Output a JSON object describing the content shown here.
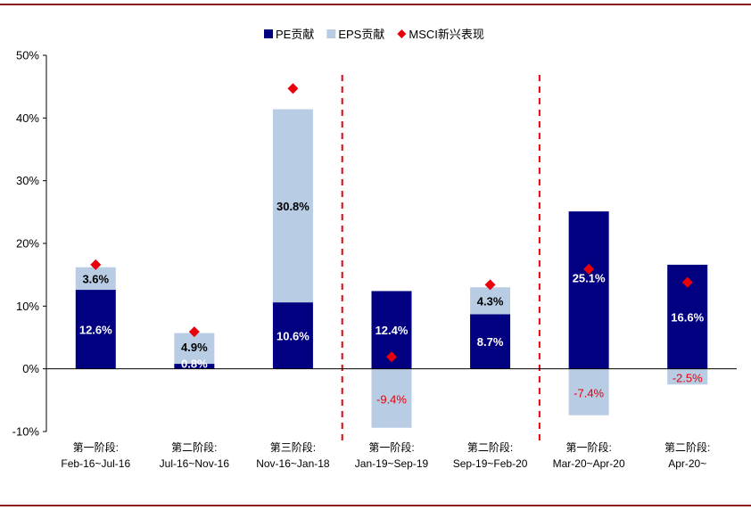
{
  "chart_data": {
    "type": "bar",
    "stacked": true,
    "categories": [
      [
        "第一阶段:",
        "Feb-16~Jul-16"
      ],
      [
        "第二阶段:",
        "Jul-16~Nov-16"
      ],
      [
        "第三阶段:",
        "Nov-16~Jan-18"
      ],
      [
        "第一阶段:",
        "Jan-19~Sep-19"
      ],
      [
        "第二阶段:",
        "Sep-19~Feb-20"
      ],
      [
        "第一阶段:",
        "Mar-20~Apr-20"
      ],
      [
        "第二阶段:",
        "Apr-20~"
      ]
    ],
    "series": [
      {
        "name": "PE贡献",
        "type": "bar",
        "color": "#000080",
        "values": [
          12.6,
          0.8,
          10.6,
          12.4,
          8.7,
          25.1,
          16.6
        ],
        "labels": [
          "12.6%",
          "0.8%",
          "10.6%",
          "12.4%",
          "8.7%",
          "25.1%",
          "16.6%"
        ]
      },
      {
        "name": "EPS贡献",
        "type": "bar",
        "color": "#b8cce4",
        "values": [
          3.6,
          4.9,
          30.8,
          -9.4,
          4.3,
          -7.4,
          -2.5
        ],
        "labels": [
          "3.6%",
          "4.9%",
          "30.8%",
          "-9.4%",
          "4.3%",
          "-7.4%",
          "-2.5%"
        ]
      },
      {
        "name": "MSCI新兴表现",
        "type": "scatter",
        "color": "#e8000b",
        "values": [
          16.6,
          5.9,
          44.7,
          1.9,
          13.4,
          15.9,
          13.8
        ]
      }
    ],
    "yticks": [
      "50%",
      "40%",
      "30%",
      "20%",
      "10%",
      "0%",
      "-10%"
    ],
    "ylim": [
      -10,
      50
    ],
    "dividers_after": [
      2,
      4
    ],
    "legend_position": "top-center",
    "grid": false
  }
}
